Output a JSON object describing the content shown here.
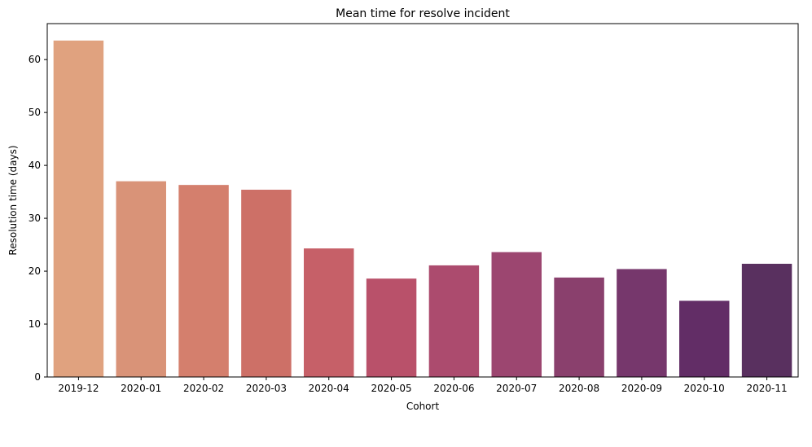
{
  "chart_data": {
    "type": "bar",
    "title": "Mean time for resolve incident",
    "xlabel": "Cohort",
    "ylabel": "Resolution time (days)",
    "categories": [
      "2019-12",
      "2020-01",
      "2020-02",
      "2020-03",
      "2020-04",
      "2020-05",
      "2020-06",
      "2020-07",
      "2020-08",
      "2020-09",
      "2020-10",
      "2020-11"
    ],
    "values": [
      63.6,
      37.0,
      36.3,
      35.4,
      24.3,
      18.6,
      21.1,
      23.6,
      18.8,
      20.4,
      14.4,
      21.4
    ],
    "colors": [
      "#e0a27f",
      "#d99378",
      "#d47f6d",
      "#cd7067",
      "#c66068",
      "#b9516a",
      "#ac4b6e",
      "#9c4670",
      "#8a406d",
      "#76376c",
      "#622d66",
      "#59305f"
    ],
    "ylim": [
      0,
      66.8
    ],
    "yticks": [
      0,
      10,
      20,
      30,
      40,
      50,
      60
    ],
    "grid": false,
    "legend": "none"
  }
}
